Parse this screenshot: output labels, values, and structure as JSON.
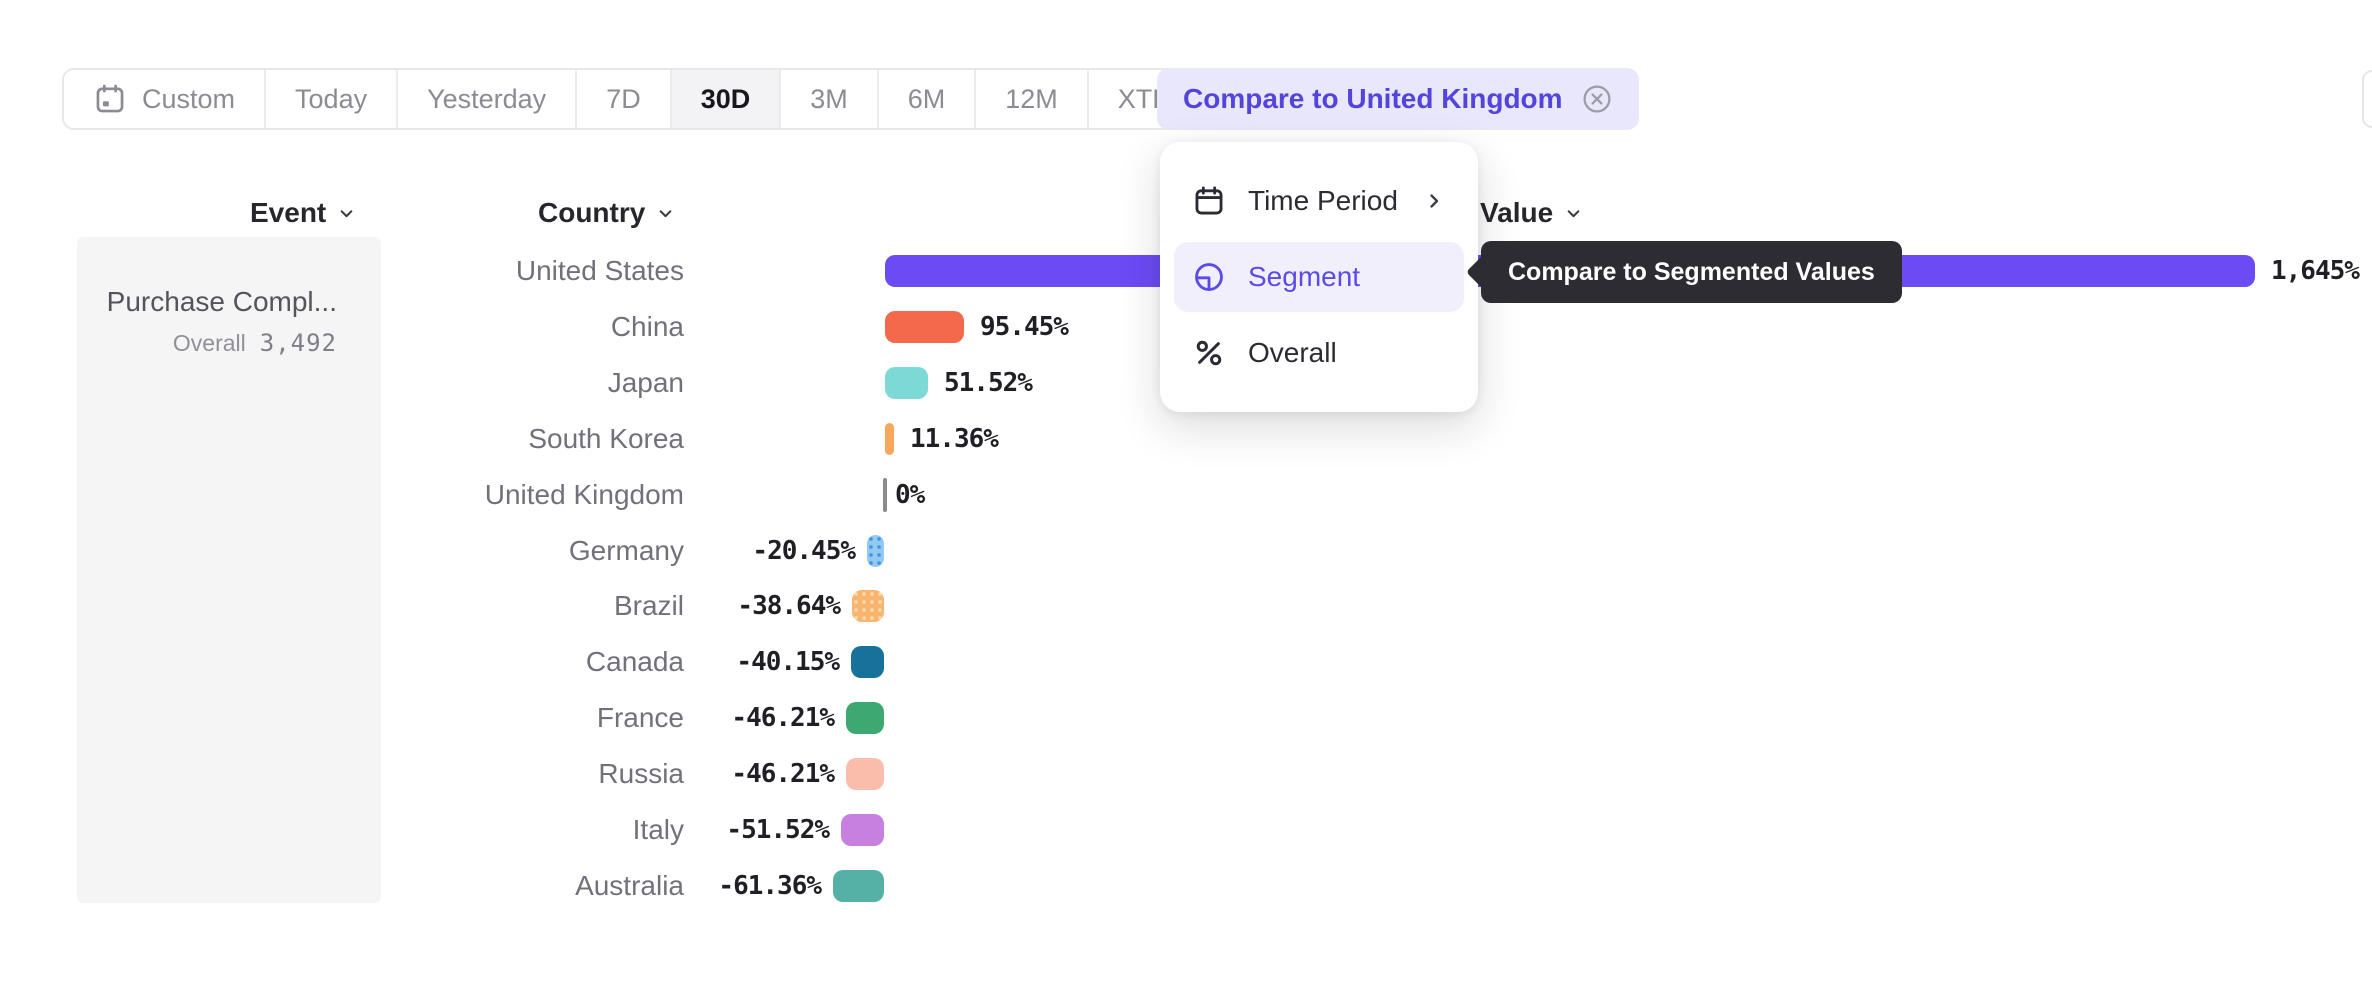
{
  "toolbar": {
    "periods": [
      {
        "label": "Custom",
        "icon": "calendar-custom",
        "selected": false
      },
      {
        "label": "Today",
        "selected": false
      },
      {
        "label": "Yesterday",
        "selected": false
      },
      {
        "label": "7D",
        "selected": false
      },
      {
        "label": "30D",
        "selected": true
      },
      {
        "label": "3M",
        "selected": false
      },
      {
        "label": "6M",
        "selected": false
      },
      {
        "label": "12M",
        "selected": false
      },
      {
        "label": "XTD",
        "chevron": true,
        "selected": false
      }
    ]
  },
  "compare_chip": {
    "label": "Compare to United Kingdom"
  },
  "columns": {
    "event": "Event",
    "country": "Country",
    "value": "Value"
  },
  "event_card": {
    "title": "Purchase Compl...",
    "overall_label": "Overall",
    "overall_value": "3,492"
  },
  "menu": {
    "items": [
      {
        "label": "Time Period",
        "icon": "calendar",
        "submenu": true,
        "selected": false
      },
      {
        "label": "Segment",
        "icon": "segment",
        "selected": true
      },
      {
        "label": "Overall",
        "icon": "percent",
        "selected": false
      }
    ]
  },
  "tooltip": {
    "text": "Compare to Segmented Values"
  },
  "chart_data": {
    "type": "bar",
    "orientation": "horizontal",
    "value_unit": "%",
    "xlim": [
      -61.36,
      1645
    ],
    "baseline": 0,
    "categories": [
      "United States",
      "China",
      "Japan",
      "South Korea",
      "United Kingdom",
      "Germany",
      "Brazil",
      "Canada",
      "France",
      "Russia",
      "Italy",
      "Australia"
    ],
    "rows": [
      {
        "country": "United States",
        "value": 1645,
        "label": "1,645%",
        "color": "#6C4BF4",
        "pattern": "solid"
      },
      {
        "country": "China",
        "value": 95.45,
        "label": "95.45%",
        "color": "#F4694B",
        "pattern": "solid"
      },
      {
        "country": "Japan",
        "value": 51.52,
        "label": "51.52%",
        "color": "#7CD9D6",
        "pattern": "solid"
      },
      {
        "country": "South Korea",
        "value": 11.36,
        "label": "11.36%",
        "color": "#F8A75D",
        "pattern": "solid"
      },
      {
        "country": "United Kingdom",
        "value": 0,
        "label": "0%",
        "color": "#8A8A8A",
        "pattern": "solid"
      },
      {
        "country": "Germany",
        "value": -20.45,
        "label": "-20.45%",
        "color": "#93C9F1",
        "pattern": "dots",
        "dot_color": "#3F97E4"
      },
      {
        "country": "Brazil",
        "value": -38.64,
        "label": "-38.64%",
        "color": "#F9B470",
        "pattern": "dots",
        "dot_color": "#FFD9AE"
      },
      {
        "country": "Canada",
        "value": -40.15,
        "label": "-40.15%",
        "color": "#17719B",
        "pattern": "solid"
      },
      {
        "country": "France",
        "value": -46.21,
        "label": "-46.21%",
        "color": "#3EA873",
        "pattern": "solid"
      },
      {
        "country": "Russia",
        "value": -46.21,
        "label": "-46.21%",
        "color": "#FBBDAB",
        "pattern": "solid"
      },
      {
        "country": "Italy",
        "value": -51.52,
        "label": "-51.52%",
        "color": "#C77FE0",
        "pattern": "solid"
      },
      {
        "country": "Australia",
        "value": -61.36,
        "label": "-61.36%",
        "color": "#55B1A6",
        "pattern": "solid"
      }
    ]
  },
  "theme": {
    "accent": "#5B4BE8",
    "chip_bg": "#E9E7FC",
    "chip_text": "#5244DD",
    "tooltip_bg": "#2D2C33",
    "menu_selected_bg": "#F2EFFD",
    "toolbar_selected_bg": "#F3F3F5"
  }
}
